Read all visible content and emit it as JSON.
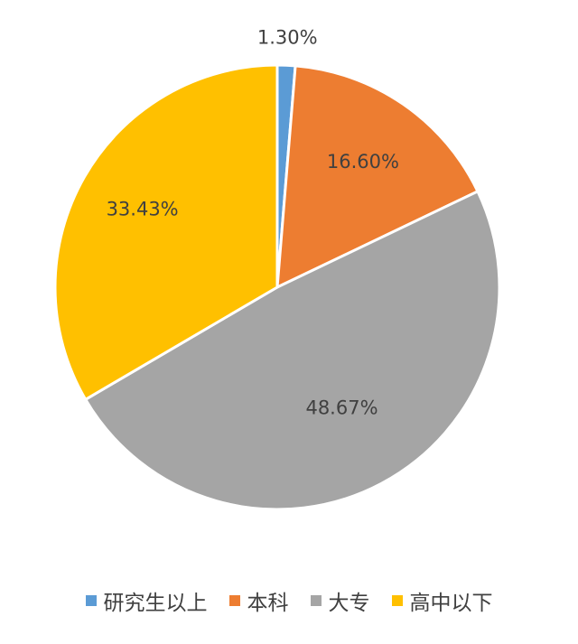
{
  "chart_data": {
    "type": "pie",
    "title": "",
    "categories": [
      "研究生以上",
      "本科",
      "大专",
      "高中以下"
    ],
    "values": [
      1.3,
      16.6,
      48.67,
      33.43
    ],
    "labels": [
      "1.30%",
      "16.60%",
      "48.67%",
      "33.43%"
    ],
    "colors": [
      "#5b9bd5",
      "#ed7d31",
      "#a5a5a5",
      "#ffc000"
    ],
    "start_angle_deg": 0,
    "direction": "clockwise",
    "legend_position": "bottom"
  }
}
